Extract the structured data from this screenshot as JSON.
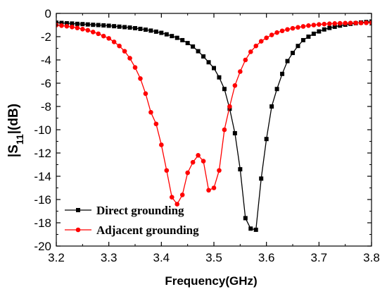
{
  "chart_data": {
    "type": "line",
    "title": "",
    "xlabel": "Frequency(GHz)",
    "ylabel_main": "|S",
    "ylabel_sub": "11",
    "ylabel_end": "|(dB)",
    "xlim": [
      3.2,
      3.8
    ],
    "ylim": [
      -20,
      0
    ],
    "x_ticks": [
      "3.2",
      "3.3",
      "3.4",
      "3.5",
      "3.6",
      "3.7",
      "3.8"
    ],
    "y_ticks": [
      "0",
      "-2",
      "-4",
      "-6",
      "-8",
      "-10",
      "-12",
      "-14",
      "-16",
      "-18",
      "-20"
    ],
    "grid": false,
    "legend_position": "bottom-left",
    "series": [
      {
        "name": "Direct grounding",
        "color": "#000000",
        "marker": "square",
        "x": [
          3.2,
          3.21,
          3.22,
          3.23,
          3.24,
          3.25,
          3.26,
          3.27,
          3.28,
          3.29,
          3.3,
          3.31,
          3.32,
          3.33,
          3.34,
          3.35,
          3.36,
          3.37,
          3.38,
          3.39,
          3.4,
          3.41,
          3.42,
          3.43,
          3.44,
          3.45,
          3.46,
          3.47,
          3.48,
          3.49,
          3.5,
          3.51,
          3.52,
          3.53,
          3.54,
          3.55,
          3.56,
          3.57,
          3.58,
          3.59,
          3.6,
          3.61,
          3.62,
          3.63,
          3.64,
          3.65,
          3.66,
          3.67,
          3.68,
          3.69,
          3.7,
          3.71,
          3.72,
          3.73,
          3.74,
          3.75,
          3.76,
          3.77,
          3.78,
          3.79,
          3.8
        ],
        "values": [
          -0.8,
          -0.82,
          -0.85,
          -0.87,
          -0.9,
          -0.92,
          -0.95,
          -0.98,
          -1.0,
          -1.03,
          -1.06,
          -1.1,
          -1.14,
          -1.18,
          -1.22,
          -1.27,
          -1.33,
          -1.4,
          -1.48,
          -1.57,
          -1.67,
          -1.8,
          -1.95,
          -2.1,
          -2.3,
          -2.55,
          -2.85,
          -3.25,
          -3.7,
          -4.2,
          -4.7,
          -5.5,
          -6.5,
          -8.2,
          -10.3,
          -13.4,
          -17.6,
          -18.5,
          -18.6,
          -14.2,
          -10.8,
          -8.0,
          -6.5,
          -5.2,
          -4.1,
          -3.4,
          -2.8,
          -2.3,
          -2.0,
          -1.75,
          -1.55,
          -1.38,
          -1.25,
          -1.15,
          -1.05,
          -0.97,
          -0.9,
          -0.84,
          -0.78,
          -0.74,
          -0.7
        ]
      },
      {
        "name": "Adjacent grounding",
        "color": "#ff0000",
        "marker": "circle",
        "x": [
          3.2,
          3.21,
          3.22,
          3.23,
          3.24,
          3.25,
          3.26,
          3.27,
          3.28,
          3.29,
          3.3,
          3.31,
          3.32,
          3.33,
          3.34,
          3.35,
          3.36,
          3.37,
          3.38,
          3.39,
          3.4,
          3.41,
          3.42,
          3.43,
          3.44,
          3.45,
          3.46,
          3.47,
          3.48,
          3.49,
          3.5,
          3.51,
          3.52,
          3.53,
          3.54,
          3.55,
          3.56,
          3.57,
          3.58,
          3.59,
          3.6,
          3.61,
          3.62,
          3.63,
          3.64,
          3.65,
          3.66,
          3.67,
          3.68,
          3.69,
          3.7,
          3.71,
          3.72,
          3.73,
          3.74,
          3.75,
          3.76,
          3.77,
          3.78,
          3.79,
          3.8
        ],
        "values": [
          -1.0,
          -1.05,
          -1.1,
          -1.17,
          -1.25,
          -1.35,
          -1.45,
          -1.6,
          -1.75,
          -1.95,
          -2.15,
          -2.45,
          -2.8,
          -3.25,
          -3.85,
          -4.65,
          -5.6,
          -6.9,
          -8.5,
          -9.5,
          -11.3,
          -13.5,
          -15.8,
          -16.4,
          -15.6,
          -13.7,
          -12.8,
          -12.2,
          -12.7,
          -15.2,
          -15.0,
          -13.5,
          -10.0,
          -8.0,
          -6.2,
          -5.0,
          -4.0,
          -3.3,
          -2.8,
          -2.4,
          -2.1,
          -1.85,
          -1.65,
          -1.5,
          -1.38,
          -1.28,
          -1.2,
          -1.12,
          -1.05,
          -1.0,
          -0.95,
          -0.92,
          -0.89,
          -0.87,
          -0.85,
          -0.84,
          -0.83,
          -0.82,
          -0.82,
          -0.81,
          -0.8
        ]
      }
    ]
  }
}
